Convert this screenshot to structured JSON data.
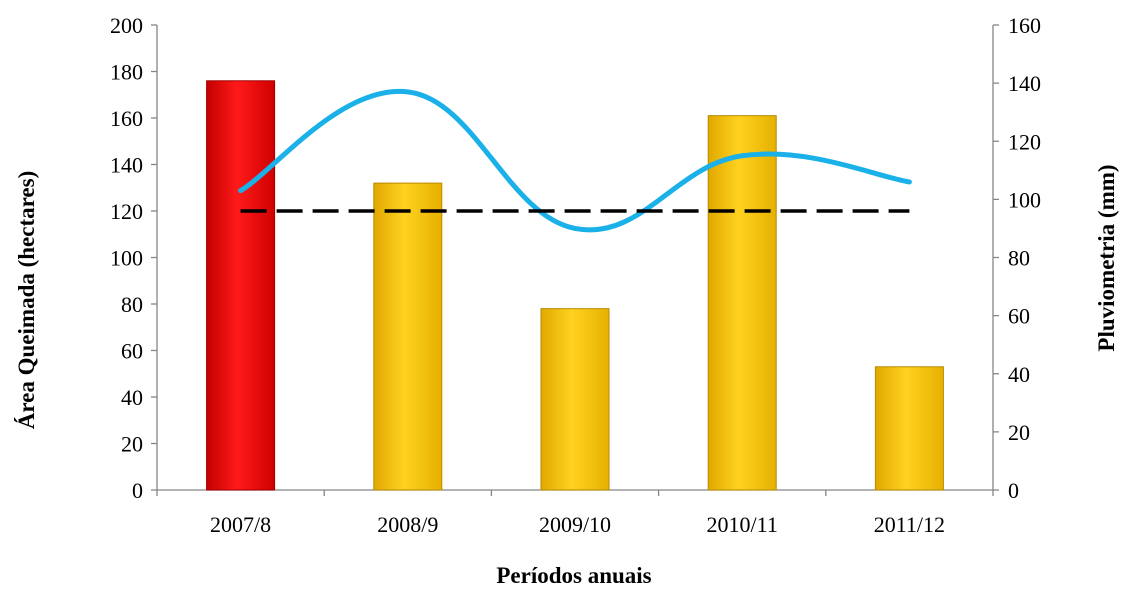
{
  "chart_data": {
    "type": "bar",
    "categories": [
      "2007/8",
      "2008/9",
      "2009/10",
      "2010/11",
      "2011/12"
    ],
    "series": [
      {
        "axis": "left",
        "values": [
          176,
          132,
          78,
          161,
          53
        ],
        "colors": [
          "#ff0000",
          "#ffcc00",
          "#ffcc00",
          "#ffcc00",
          "#ffcc00"
        ]
      },
      {
        "type": "line",
        "smooth": true,
        "axis": "right",
        "values": [
          103,
          137,
          90,
          115,
          106
        ],
        "color": "#1ab0e8"
      },
      {
        "type": "line",
        "dashed": true,
        "axis": "right",
        "values": [
          96,
          96,
          96,
          96,
          96
        ],
        "color": "#000000"
      }
    ],
    "xlabel": "Períodos anuais",
    "ylabel": "Área Queimada (hectares)",
    "y2label": "Pluviometria (mm)",
    "ylim": [
      0,
      200
    ],
    "y2lim": [
      0,
      160
    ],
    "yticks": [
      "0",
      "20",
      "40",
      "60",
      "80",
      "100",
      "120",
      "140",
      "160",
      "180",
      "200"
    ],
    "y2ticks": [
      "0",
      "20",
      "40",
      "60",
      "80",
      "100",
      "120",
      "140",
      "160"
    ],
    "grid": false,
    "legend": "none"
  }
}
